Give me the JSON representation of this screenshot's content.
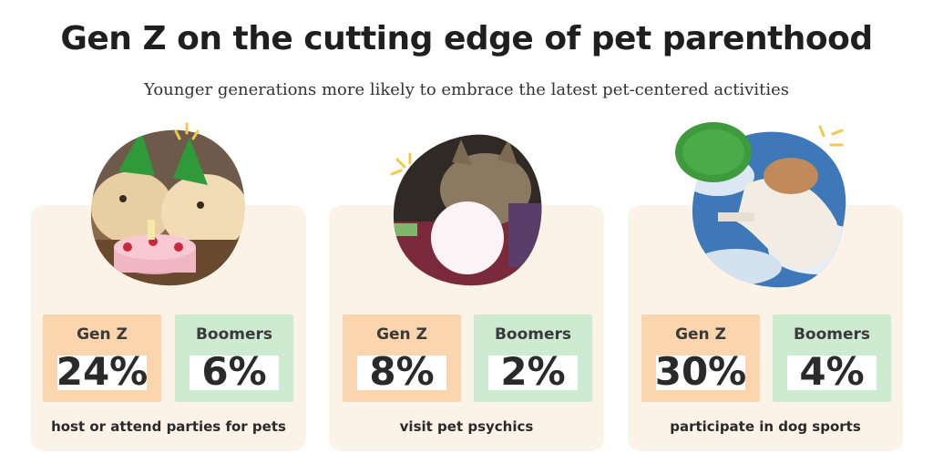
{
  "header": {
    "title": "Gen Z on the cutting edge of pet parenthood",
    "subtitle": "Younger generations more likely to embrace the latest pet-centered activities"
  },
  "colors": {
    "panel_bg": "#fcf3e8",
    "genz": "#fbd5ae",
    "boomers": "#cdebd0",
    "sparkle": "#f2c94c"
  },
  "chart_data": [
    {
      "type": "table",
      "title": "host or attend parties for pets",
      "categories": [
        "Gen Z",
        "Boomers"
      ],
      "values": [
        24,
        6
      ],
      "value_labels": [
        "24%",
        "6%"
      ],
      "icon": "dogs-birthday-cake-photo"
    },
    {
      "type": "table",
      "title": "visit pet psychics",
      "categories": [
        "Gen Z",
        "Boomers"
      ],
      "values": [
        8,
        2
      ],
      "value_labels": [
        "8%",
        "2%"
      ],
      "icon": "cat-crystal-ball-photo"
    },
    {
      "type": "table",
      "title": "participate in dog sports",
      "categories": [
        "Gen Z",
        "Boomers"
      ],
      "values": [
        30,
        4
      ],
      "value_labels": [
        "30%",
        "4%"
      ],
      "icon": "dog-frisbee-photo"
    }
  ]
}
